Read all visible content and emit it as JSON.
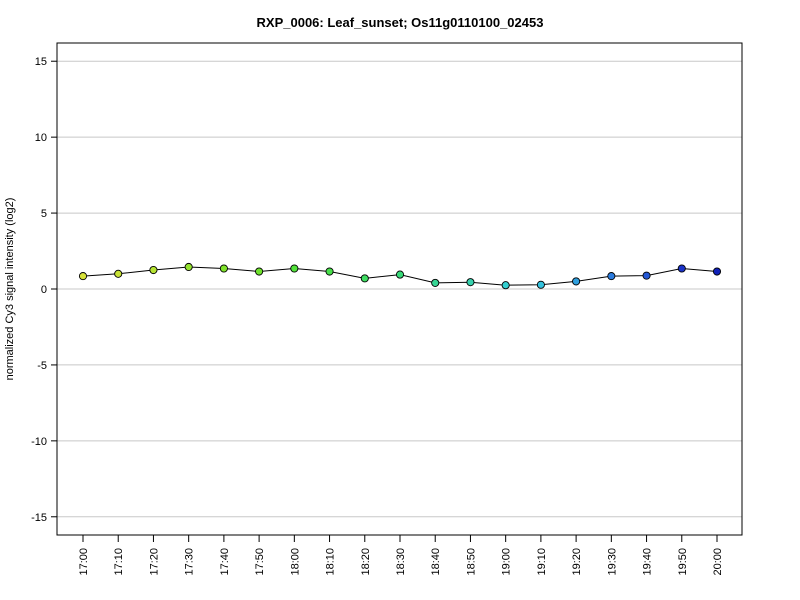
{
  "chart_data": {
    "type": "line",
    "title": "RXP_0006: Leaf_sunset; Os11g0110100_02453",
    "xlabel": "",
    "ylabel": "normalized Cy3 signal intensity (log2)",
    "categories": [
      "17:00",
      "17:10",
      "17:20",
      "17:30",
      "17:40",
      "17:50",
      "18:00",
      "18:10",
      "18:20",
      "18:30",
      "18:40",
      "18:50",
      "19:00",
      "19:10",
      "19:20",
      "19:30",
      "19:40",
      "19:50",
      "20:00"
    ],
    "series": [
      {
        "values": [
          0.85,
          1.0,
          1.25,
          1.45,
          1.35,
          1.15,
          1.35,
          1.15,
          0.7,
          0.95,
          0.4,
          0.45,
          0.25,
          0.28,
          0.5,
          0.85,
          0.88,
          1.35,
          1.15
        ],
        "point_colors": [
          "#d7e23a",
          "#c8e236",
          "#b5e232",
          "#94e22e",
          "#7fe22a",
          "#6ee22c",
          "#52e23a",
          "#48df4a",
          "#3edc62",
          "#38d878",
          "#36d594",
          "#36d2ae",
          "#34cfd0",
          "#33c2de",
          "#2f9fde",
          "#2b7bde",
          "#2458d6",
          "#1a33c8",
          "#1020b8"
        ]
      }
    ],
    "ylim": [
      -16.2,
      16.2
    ],
    "yticks": [
      -15,
      -10,
      -5,
      0,
      5,
      10,
      15
    ],
    "grid": true,
    "line_color": "#000000"
  }
}
